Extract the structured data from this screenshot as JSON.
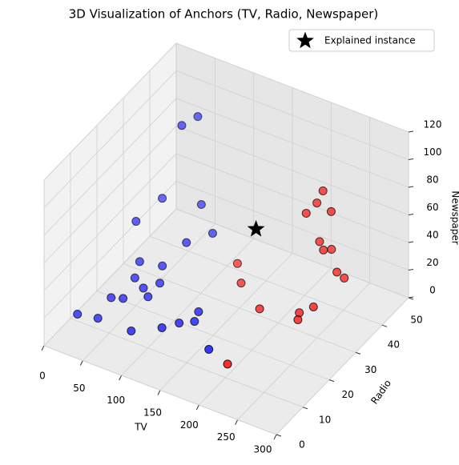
{
  "chart_data": {
    "type": "scatter3d",
    "title": "3D Visualization of Anchors (TV, Radio, Newspaper)",
    "xlabel": "TV",
    "ylabel": "Radio",
    "zlabel": "Newspaper",
    "xlim": [
      0,
      300
    ],
    "ylim": [
      0,
      50
    ],
    "zlim": [
      0,
      120
    ],
    "xticks": [
      0,
      50,
      100,
      150,
      200,
      250,
      300
    ],
    "yticks": [
      0,
      10,
      20,
      30,
      40,
      50
    ],
    "zticks": [
      0,
      20,
      40,
      60,
      80,
      100,
      120
    ],
    "grid": true,
    "legend": "upper right",
    "series": [
      {
        "color": "#0000ff",
        "marker": "circle",
        "x": [
          62,
          55,
          40,
          70,
          30,
          88,
          78,
          45,
          64,
          49,
          60,
          71,
          66,
          32,
          44,
          9,
          32,
          121,
          75,
          101,
          113,
          126,
          165
        ],
        "y": [
          40,
          36,
          33,
          39,
          26,
          38,
          31,
          23,
          26,
          20,
          20,
          23,
          20,
          16,
          17,
          10,
          11,
          23,
          11,
          15,
          18,
          20,
          14
        ],
        "z": [
          100,
          100,
          50,
          40,
          45,
          25,
          30,
          25,
          20,
          20,
          15,
          15,
          10,
          10,
          10,
          5,
          5,
          5,
          5,
          5,
          5,
          5,
          5
        ]
      },
      {
        "color": "#ff0000",
        "marker": "circle",
        "x": [
          210,
          209,
          202,
          224,
          209,
          214,
          221,
          120,
          228,
          234,
          135,
          176,
          225,
          217,
          222,
          196
        ],
        "y": [
          44,
          42,
          40,
          43,
          43,
          43,
          44,
          38,
          44,
          45,
          35,
          30,
          36,
          33,
          31,
          12
        ],
        "z": [
          70,
          65,
          60,
          60,
          35,
          30,
          30,
          10,
          15,
          10,
          5,
          5,
          5,
          5,
          5,
          5
        ]
      },
      {
        "name": "Explained instance",
        "color": "#000000",
        "marker": "star",
        "x": [
          144
        ],
        "y": [
          38
        ],
        "z": [
          40
        ]
      }
    ]
  }
}
